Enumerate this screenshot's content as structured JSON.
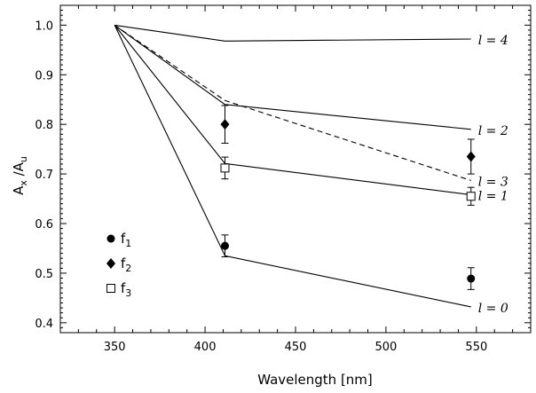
{
  "chart_data": {
    "type": "line",
    "title": "",
    "xlabel": "Wavelength [nm]",
    "ylabel_main": "A",
    "ylabel_sub1": "x",
    "ylabel_sep": " /A",
    "ylabel_sub2": "u",
    "xlim": [
      320,
      580
    ],
    "ylim": [
      0.38,
      1.04
    ],
    "xticks": [
      350,
      400,
      450,
      500,
      550
    ],
    "xtick_labels": [
      "350",
      "400",
      "450",
      "500",
      "550"
    ],
    "yticks": [
      0.4,
      0.5,
      0.6,
      0.7,
      0.8,
      0.9,
      1.0
    ],
    "ytick_labels": [
      "0.4",
      "0.5",
      "0.6",
      "0.7",
      "0.8",
      "0.9",
      "1.0"
    ],
    "grid": false,
    "lines": [
      {
        "label": "l = 4",
        "style": "solid",
        "x": [
          350,
          411,
          547
        ],
        "y": [
          1.0,
          0.968,
          0.972
        ]
      },
      {
        "label": "l = 2",
        "style": "solid",
        "x": [
          350,
          411,
          547
        ],
        "y": [
          1.0,
          0.84,
          0.79
        ]
      },
      {
        "label": "l = 3",
        "style": "dashed",
        "x": [
          350,
          411,
          547
        ],
        "y": [
          1.0,
          0.848,
          0.687
        ]
      },
      {
        "label": "l = 1",
        "style": "solid",
        "x": [
          350,
          411,
          547
        ],
        "y": [
          1.0,
          0.721,
          0.658
        ]
      },
      {
        "label": "l = 0",
        "style": "solid",
        "x": [
          350,
          411,
          547
        ],
        "y": [
          1.0,
          0.535,
          0.432
        ]
      }
    ],
    "points": [
      {
        "series": "f1",
        "marker": "circle",
        "x": [
          411,
          547
        ],
        "y": [
          0.555,
          0.489
        ],
        "err": [
          0.022,
          0.022
        ]
      },
      {
        "series": "f2",
        "marker": "diamond",
        "x": [
          411,
          547
        ],
        "y": [
          0.8,
          0.735
        ],
        "err": [
          0.038,
          0.035
        ]
      },
      {
        "series": "f3",
        "marker": "square",
        "x": [
          411,
          547
        ],
        "y": [
          0.712,
          0.655
        ],
        "err": [
          0.022,
          0.018
        ]
      }
    ],
    "legend": {
      "placement": "lower-left",
      "entries": [
        {
          "marker": "circle",
          "main": "f",
          "sub": "1"
        },
        {
          "marker": "diamond",
          "main": "f",
          "sub": "2"
        },
        {
          "marker": "square",
          "main": "f",
          "sub": "3"
        }
      ]
    }
  }
}
